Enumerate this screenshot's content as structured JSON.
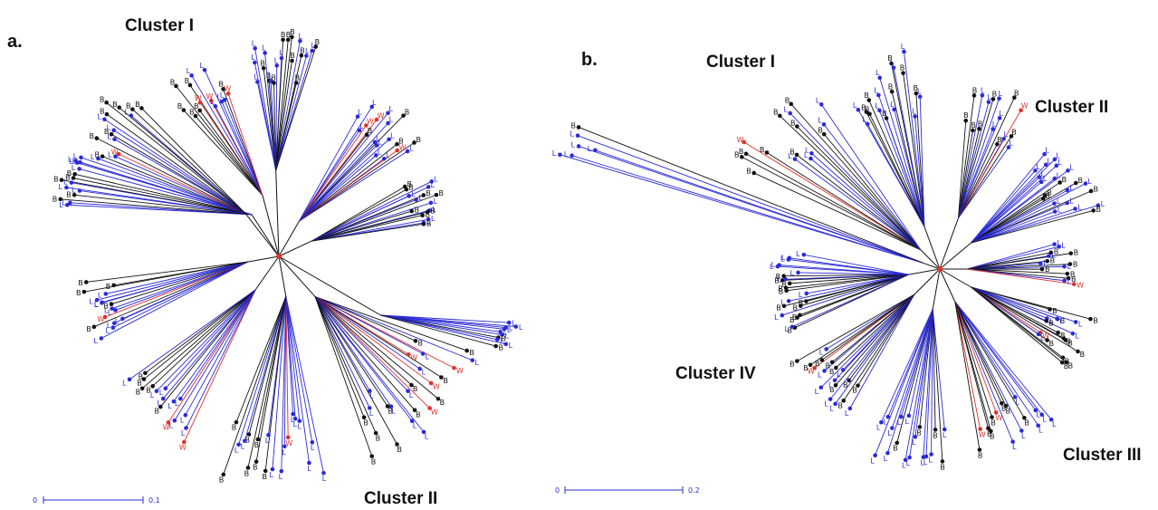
{
  "colors": {
    "L": "#2b2bd8",
    "B": "#111111",
    "W": "#e0302a",
    "root": "#e0302a",
    "scale": "#2b2bd8"
  },
  "panel_a": {
    "label": "a.",
    "clusters": [
      {
        "name": "Cluster I"
      },
      {
        "name": "Cluster II"
      }
    ],
    "scale_bar": {
      "start_label": "0",
      "end_label": "0.1"
    }
  },
  "panel_b": {
    "label": "b.",
    "clusters": [
      {
        "name": "Cluster I"
      },
      {
        "name": "Cluster II"
      },
      {
        "name": "Cluster III"
      },
      {
        "name": "Cluster IV"
      }
    ],
    "scale_bar": {
      "start_label": "0",
      "end_label": "0.2"
    }
  },
  "tip_codes": {
    "L": "L",
    "B": "B",
    "W": "W"
  }
}
